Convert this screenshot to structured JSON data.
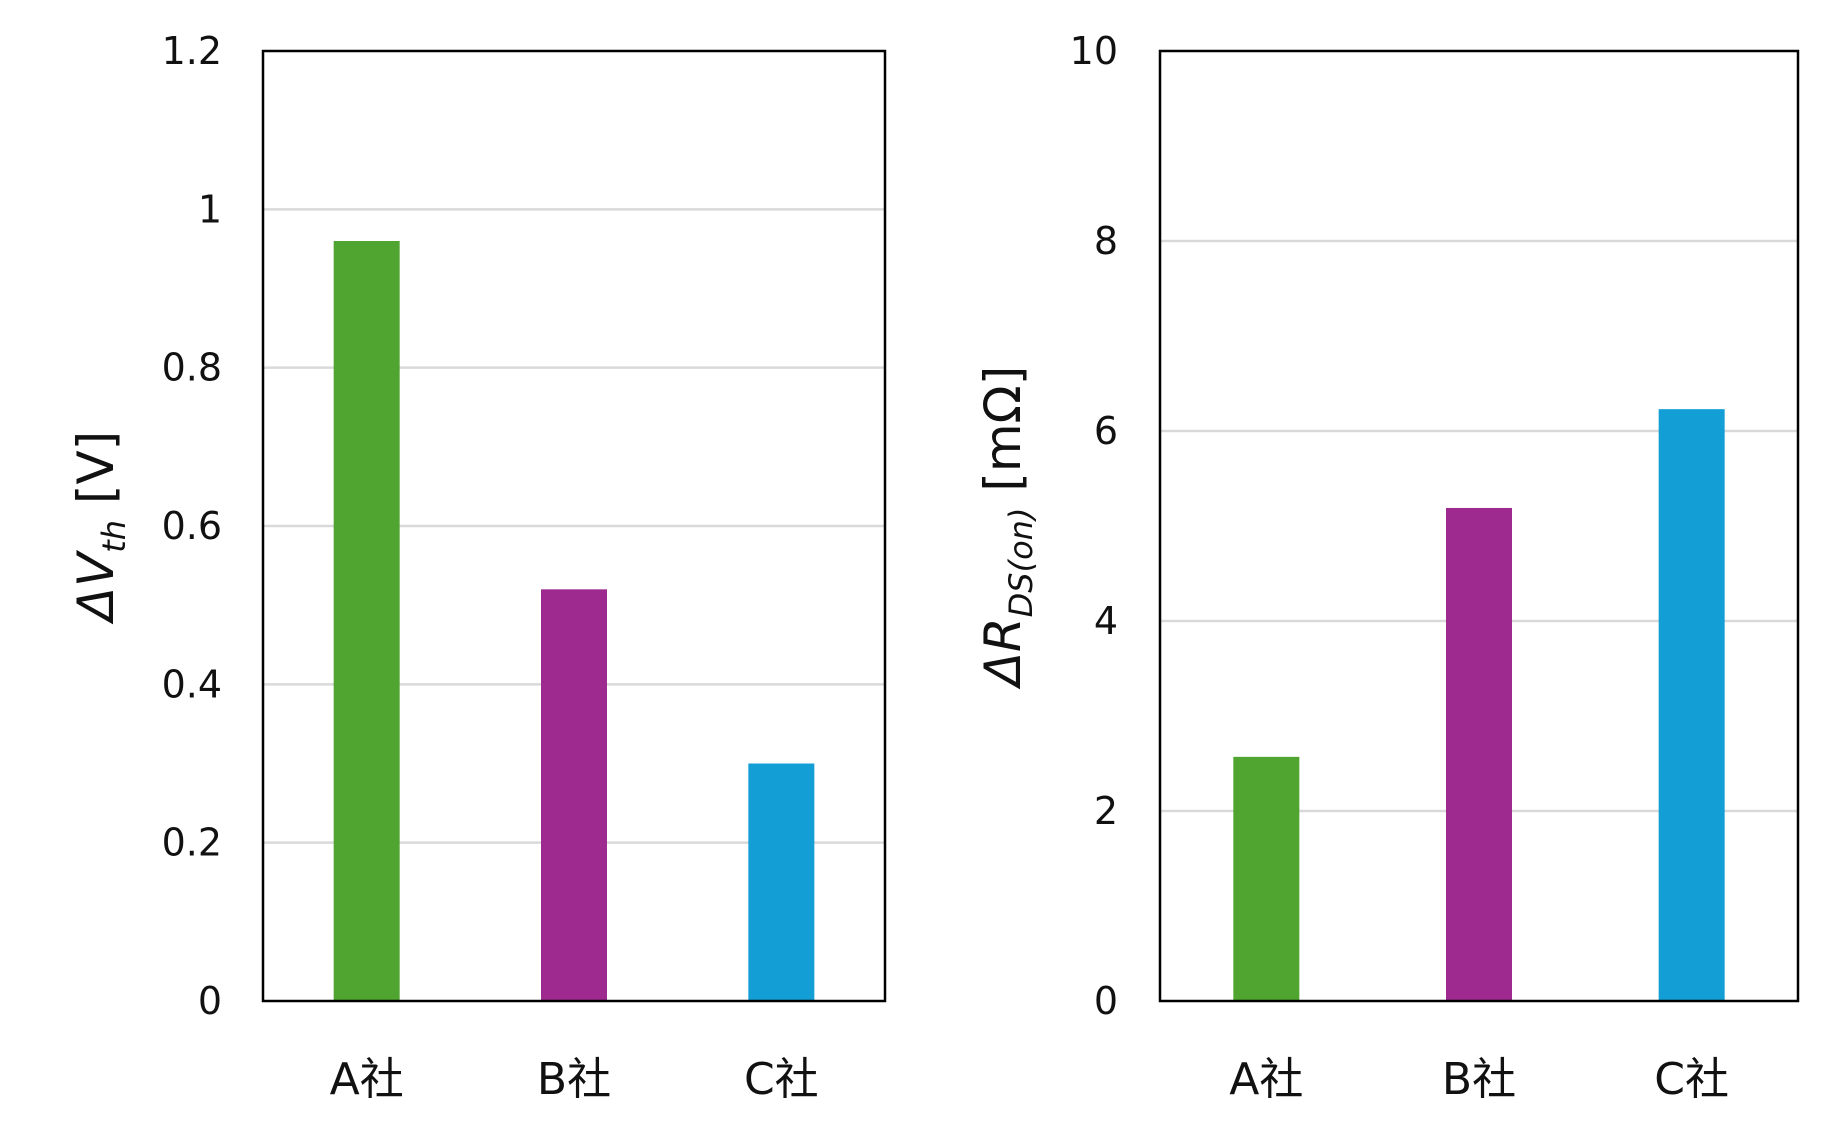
{
  "chart_data": [
    {
      "type": "bar",
      "categories": [
        "A社",
        "B社",
        "C社"
      ],
      "values": [
        0.96,
        0.52,
        0.3
      ],
      "colors": [
        "#4fa530",
        "#9e2a8f",
        "#139fd6"
      ],
      "ylabel": {
        "delta": "ΔV",
        "sub": "th",
        "unit": " [V]"
      },
      "ylim": [
        0,
        1.2
      ],
      "yticks": [
        "0",
        "0.2",
        "0.4",
        "0.6",
        "0.8",
        "1",
        "1.2"
      ],
      "grid": true
    },
    {
      "type": "bar",
      "categories": [
        "A社",
        "B社",
        "C社"
      ],
      "values": [
        2.57,
        5.19,
        6.23
      ],
      "colors": [
        "#4fa530",
        "#9e2a8f",
        "#139fd6"
      ],
      "ylabel": {
        "delta": "ΔR",
        "sub": "DS(on)",
        "unit": " [mΩ]"
      },
      "ylim": [
        0,
        10
      ],
      "yticks": [
        "0",
        "2",
        "4",
        "6",
        "8",
        "10"
      ],
      "grid": true
    }
  ]
}
